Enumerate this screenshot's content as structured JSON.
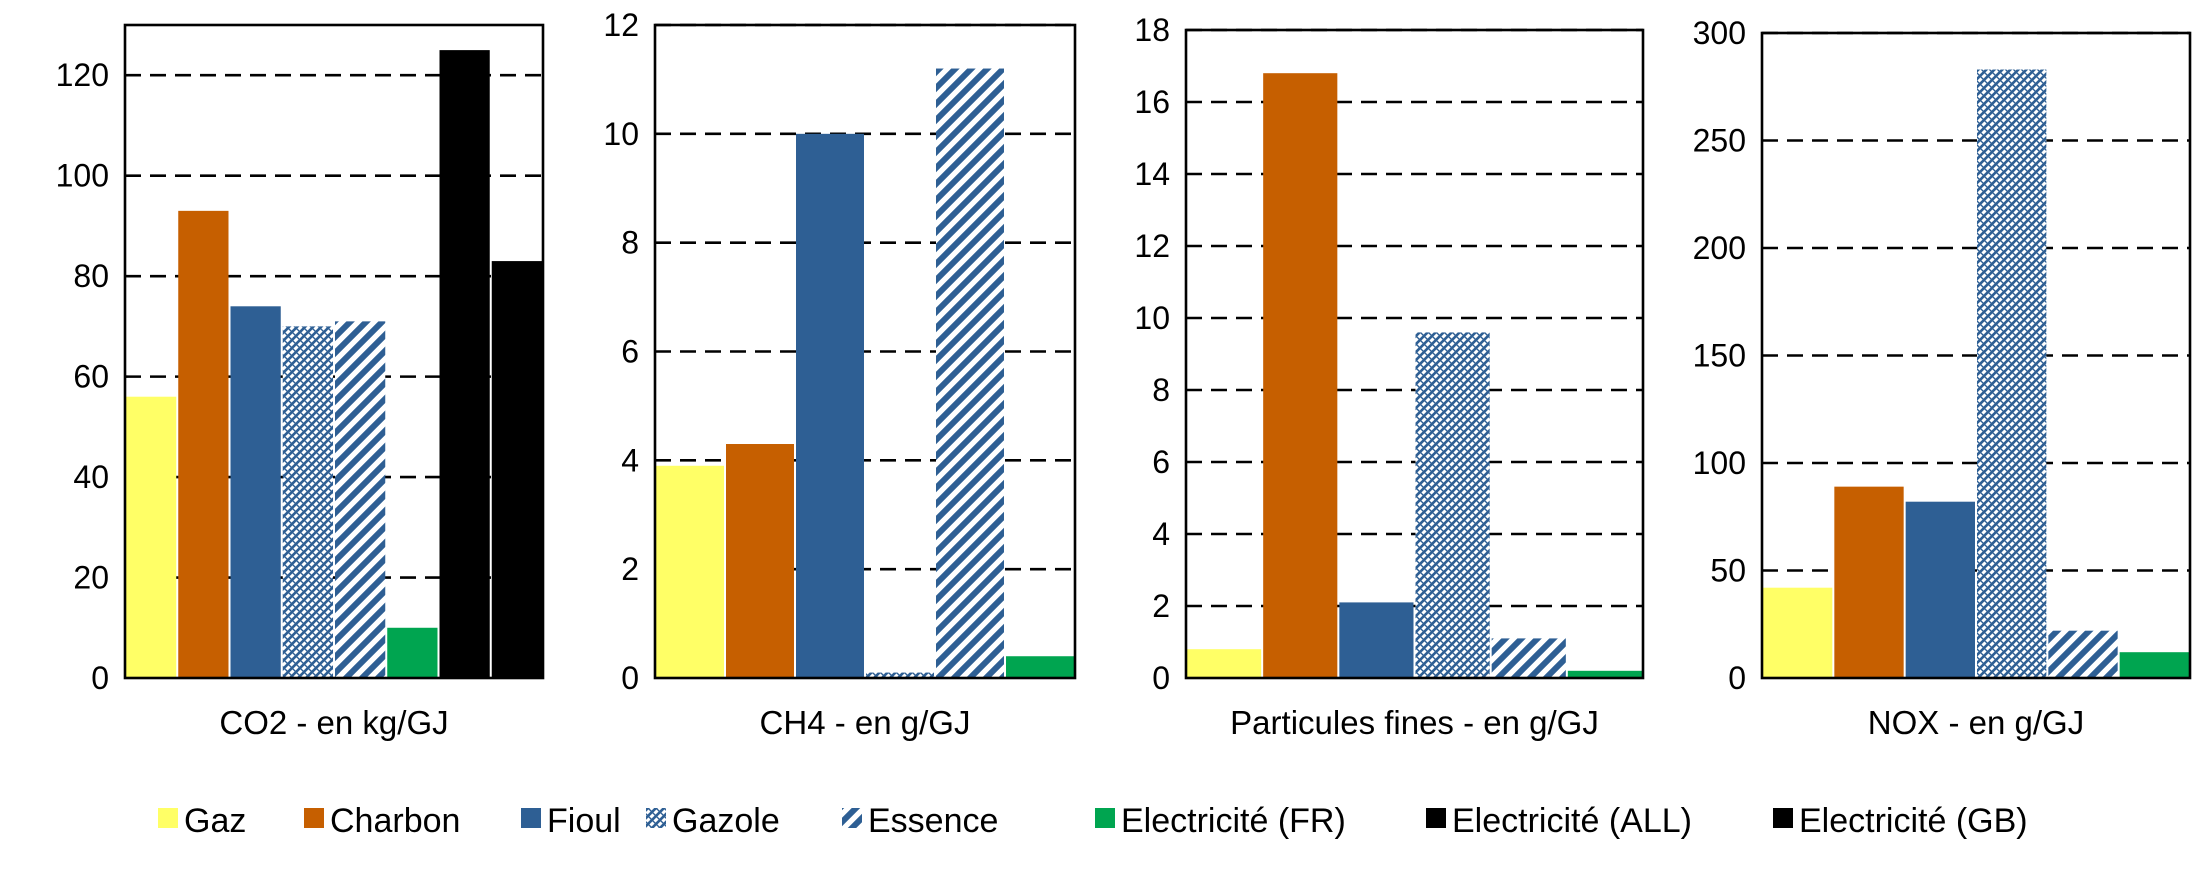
{
  "colors": {
    "Gaz": "#ffff66",
    "Charbon": "#c65f00",
    "Fioul": "#2e5f94",
    "Electricite": "#00a550",
    "grid": "#000000"
  },
  "series": [
    {
      "name": "Gaz",
      "color": "#ffff66",
      "pattern": "solid"
    },
    {
      "name": "Charbon",
      "color": "#c65f00",
      "pattern": "solid"
    },
    {
      "name": "Fioul",
      "color": "#2e5f94",
      "pattern": "solid"
    },
    {
      "name": "Gazole",
      "color": "#2e5f94",
      "pattern": "cross-hatch"
    },
    {
      "name": "Essence",
      "color": "#2e5f94",
      "pattern": "wide-diagonal"
    },
    {
      "name": "Electricité (FR)",
      "color": "#00a550",
      "pattern": "solid"
    },
    {
      "name": "Electricité (ALL)",
      "color": "#00a550",
      "pattern": "narrow-diagonal"
    },
    {
      "name": "Electricité (GB)",
      "color": "#00a550",
      "pattern": "wide-diagonal"
    }
  ],
  "chart_data": [
    {
      "type": "bar",
      "xlabel": "CO2 - en kg/GJ",
      "ylim": [
        0,
        130
      ],
      "ticks": [
        0,
        20,
        40,
        60,
        80,
        100,
        120
      ],
      "grid": "dashed",
      "categories": [
        "Gaz",
        "Charbon",
        "Fioul",
        "Gazole",
        "Essence",
        "Electricité (FR)",
        "Electricité (ALL)",
        "Electricité (GB)"
      ],
      "values": [
        56,
        93,
        74,
        70,
        71,
        10,
        125,
        83
      ]
    },
    {
      "type": "bar",
      "xlabel": "CH4 - en g/GJ",
      "ylim": [
        0,
        12
      ],
      "ticks": [
        0,
        2,
        4,
        6,
        8,
        10,
        12
      ],
      "grid": "dashed",
      "categories": [
        "Gaz",
        "Charbon",
        "Fioul",
        "Gazole",
        "Essence",
        "Electricité (FR)"
      ],
      "values": [
        3.9,
        4.3,
        10,
        0.1,
        11.2,
        0.4
      ]
    },
    {
      "type": "bar",
      "xlabel": "Particules fines - en g/GJ",
      "ylim": [
        0,
        18
      ],
      "ticks": [
        0,
        2,
        4,
        6,
        8,
        10,
        12,
        14,
        16,
        18
      ],
      "grid": "dashed",
      "categories": [
        "Gaz",
        "Charbon",
        "Fioul",
        "Gazole",
        "Essence",
        "Electricité (FR)"
      ],
      "values": [
        0.8,
        16.8,
        2.1,
        9.6,
        1.1,
        0.2
      ]
    },
    {
      "type": "bar",
      "xlabel": "NOX - en g/GJ",
      "ylim": [
        0,
        300
      ],
      "ticks": [
        0,
        50,
        100,
        150,
        200,
        250,
        300
      ],
      "grid": "dashed",
      "categories": [
        "Gaz",
        "Charbon",
        "Fioul",
        "Gazole",
        "Essence",
        "Electricité (FR)"
      ],
      "values": [
        42,
        89,
        82,
        283,
        22,
        12
      ]
    }
  ]
}
